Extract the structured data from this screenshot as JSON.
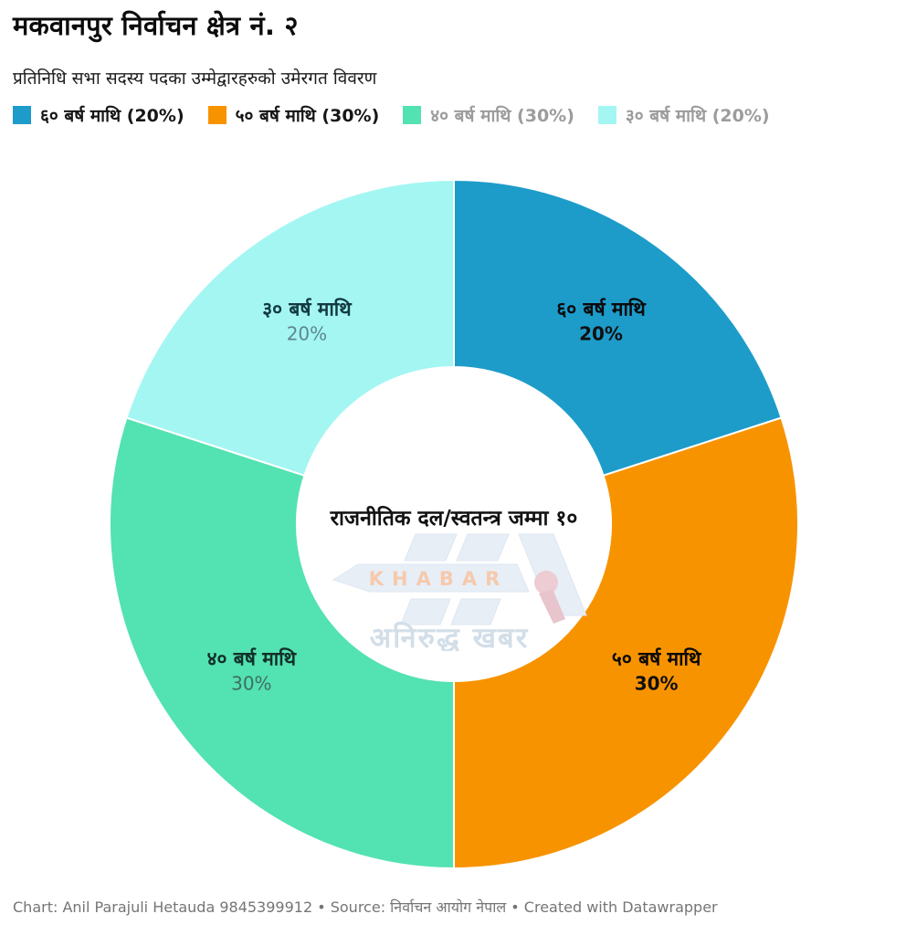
{
  "title": "मकवानपुर निर्वाचन क्षेत्र नं. २",
  "subtitle": "प्रतिनिधि सभा सदस्य पदका उम्मेद्वारहरुको उमेरगत विवरण",
  "legend": {
    "items": [
      {
        "label": "६० बर्ष माथि (20%)",
        "swatch": "#1d9cca",
        "text_color": "#161616"
      },
      {
        "label": "५० बर्ष माथि (30%)",
        "swatch": "#f89300",
        "text_color": "#161616"
      },
      {
        "label": "४० बर्ष माथि (30%)",
        "swatch": "#53e2b1",
        "text_color": "#9c9c9c"
      },
      {
        "label": "३० बर्ष माथि (20%)",
        "swatch": "#a4f6f3",
        "text_color": "#9c9c9c"
      }
    ]
  },
  "chart_data": {
    "type": "pie",
    "style": "donut",
    "title": "मकवानपुर निर्वाचन क्षेत्र नं. २",
    "subtitle": "प्रतिनिधि सभा सदस्य पदका उम्मेद्वारहरुको उमेरगत विवरण",
    "categories": [
      "६० बर्ष माथि",
      "५० बर्ष माथि",
      "४० बर्ष माथि",
      "३० बर्ष माथि"
    ],
    "values": [
      20,
      30,
      30,
      20
    ],
    "unit": "%",
    "start_angle_deg": 0,
    "direction": "clockwise",
    "legend_position": "top",
    "center_label": "राजनीतिक दल/स्वतन्त्र जम्मा १०",
    "slices": [
      {
        "name": "६० बर्ष माथि",
        "value": 20,
        "pct_label": "20%",
        "color": "#1d9cca",
        "label_color": "#0a0a0a",
        "pct_color": "#101010",
        "pct_bold": true
      },
      {
        "name": "५० बर्ष माथि",
        "value": 30,
        "pct_label": "30%",
        "color": "#f89300",
        "label_color": "#0a0a0a",
        "pct_color": "#101010",
        "pct_bold": true
      },
      {
        "name": "४० बर्ष माथि",
        "value": 30,
        "pct_label": "30%",
        "color": "#53e2b1",
        "label_color": "#12302a",
        "pct_color": "#3f6e63",
        "pct_bold": false
      },
      {
        "name": "३० बर्ष माथि",
        "value": 20,
        "pct_label": "20%",
        "color": "#a4f6f3",
        "label_color": "#123a42",
        "pct_color": "#5e868d",
        "pct_bold": false
      }
    ]
  },
  "watermark": {
    "brand": "KHABAR",
    "name": "अनिरुद्ध खबर"
  },
  "footer": {
    "text": "Chart: Anil Parajuli Hetauda 9845399912 • Source: निर्वाचन आयोग नेपाल • Created with Datawrapper"
  }
}
